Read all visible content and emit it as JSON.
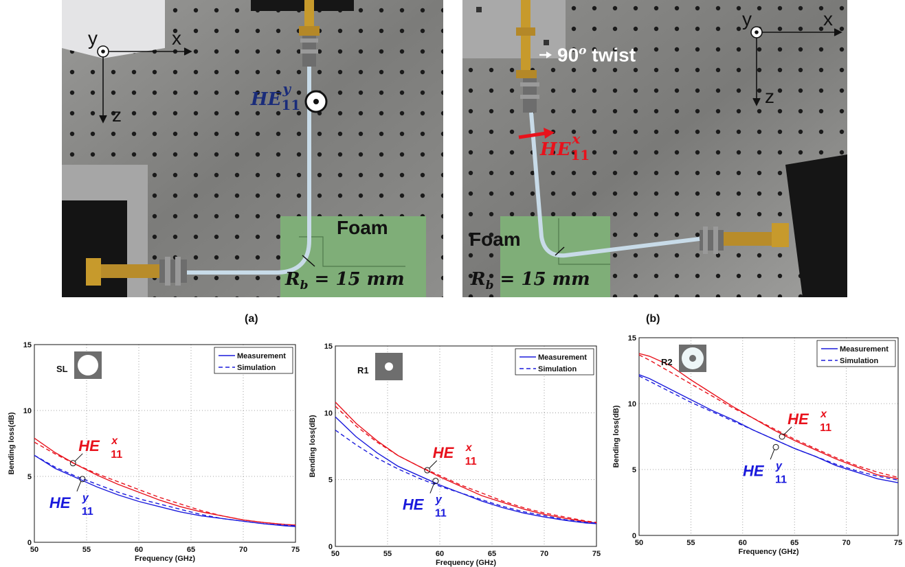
{
  "photos": [
    {
      "axes": {
        "y": "y",
        "x": "x",
        "z": "z"
      },
      "mode_base": "HE",
      "mode_sub": "11",
      "mode_sup": "y",
      "foam": "Foam",
      "radius": "R",
      "radius_sub": "b",
      "radius_value": " = 15 mm",
      "caption": "(a)"
    },
    {
      "axes": {
        "y": "y",
        "x": "x",
        "z": "z"
      },
      "twist": "90",
      "twist_sup": "o",
      "twist_word": " twist",
      "mode_base": "HE",
      "mode_sub": "11",
      "mode_sup": "x",
      "foam": "Foam",
      "radius": "R",
      "radius_sub": "b",
      "radius_value": " = 15 mm",
      "caption": "(b)"
    }
  ],
  "colors": {
    "hex": "#e8121c",
    "hey": "#1a1adc",
    "hey_photo": "#1a2c7a",
    "foam": "#7fae78",
    "plate": "#8c8c8a"
  },
  "chart_data": [
    {
      "type": "line",
      "title": "",
      "inset_label": "SL",
      "xlabel": "Frequency (GHz)",
      "ylabel": "Bending loss(dB)",
      "xlim": [
        50,
        75
      ],
      "ylim": [
        0,
        15
      ],
      "xticks": [
        "50",
        "55",
        "60",
        "65",
        "70",
        "75"
      ],
      "yticks": [
        "0",
        "5",
        "10",
        "15"
      ],
      "grid": true,
      "legend": {
        "position": "top-right",
        "entries": [
          "Measurement",
          "Simulation"
        ]
      },
      "series": [
        {
          "mode": "x",
          "style": "solid",
          "x": [
            50,
            52,
            54,
            56,
            58,
            60,
            62,
            64,
            66,
            68,
            70,
            72,
            74,
            75
          ],
          "y": [
            7.9,
            6.8,
            5.9,
            5.1,
            4.4,
            3.8,
            3.2,
            2.7,
            2.3,
            2.0,
            1.7,
            1.5,
            1.35,
            1.3
          ]
        },
        {
          "mode": "x",
          "style": "dashed",
          "x": [
            50,
            52,
            54,
            56,
            58,
            60,
            62,
            64,
            66,
            68,
            70,
            72,
            74,
            75
          ],
          "y": [
            7.6,
            6.7,
            5.9,
            5.2,
            4.6,
            4.0,
            3.4,
            2.9,
            2.4,
            2.0,
            1.7,
            1.5,
            1.35,
            1.3
          ]
        },
        {
          "mode": "y",
          "style": "solid",
          "x": [
            50,
            52,
            54,
            56,
            58,
            60,
            62,
            64,
            66,
            68,
            70,
            72,
            74,
            75
          ],
          "y": [
            6.6,
            5.6,
            4.9,
            4.2,
            3.6,
            3.1,
            2.7,
            2.3,
            2.0,
            1.8,
            1.6,
            1.4,
            1.25,
            1.2
          ]
        },
        {
          "mode": "y",
          "style": "dashed",
          "x": [
            50,
            52,
            54,
            56,
            58,
            60,
            62,
            64,
            66,
            68,
            70,
            72,
            74,
            75
          ],
          "y": [
            6.6,
            5.7,
            5.0,
            4.4,
            3.8,
            3.3,
            2.9,
            2.5,
            2.1,
            1.8,
            1.6,
            1.4,
            1.3,
            1.25
          ]
        }
      ],
      "annotations": {
        "x_base": "HE",
        "x_sup": "x",
        "y_base": "HE",
        "y_sup": "y",
        "sub": "11",
        "x_point": [
          53.7,
          6.0
        ],
        "y_point": [
          54.6,
          4.8
        ]
      }
    },
    {
      "type": "line",
      "title": "",
      "inset_label": "R1",
      "xlabel": "Frequency (GHz)",
      "ylabel": "Bending loss(dB)",
      "xlim": [
        50,
        75
      ],
      "ylim": [
        0,
        15
      ],
      "xticks": [
        "50",
        "55",
        "60",
        "65",
        "70",
        "75"
      ],
      "yticks": [
        "0",
        "5",
        "10",
        "15"
      ],
      "grid": true,
      "legend": {
        "position": "top-right",
        "entries": [
          "Measurement",
          "Simulation"
        ]
      },
      "series": [
        {
          "mode": "x",
          "style": "solid",
          "x": [
            50,
            52,
            54,
            56,
            58,
            60,
            62,
            64,
            66,
            68,
            70,
            72,
            74,
            75
          ],
          "y": [
            10.8,
            9.2,
            7.9,
            6.8,
            6.0,
            5.2,
            4.5,
            3.8,
            3.3,
            2.8,
            2.4,
            2.1,
            1.85,
            1.75
          ]
        },
        {
          "mode": "x",
          "style": "dashed",
          "x": [
            50,
            52,
            54,
            56,
            58,
            60,
            62,
            64,
            66,
            68,
            70,
            72,
            74,
            75
          ],
          "y": [
            10.5,
            9.0,
            7.8,
            6.8,
            6.0,
            5.3,
            4.6,
            4.0,
            3.4,
            2.9,
            2.5,
            2.2,
            1.9,
            1.8
          ]
        },
        {
          "mode": "y",
          "style": "solid",
          "x": [
            50,
            52,
            54,
            56,
            58,
            60,
            62,
            64,
            66,
            68,
            70,
            72,
            74,
            75
          ],
          "y": [
            9.7,
            8.2,
            7.0,
            6.0,
            5.3,
            4.6,
            4.0,
            3.4,
            2.9,
            2.5,
            2.2,
            1.95,
            1.75,
            1.7
          ]
        },
        {
          "mode": "y",
          "style": "dashed",
          "x": [
            50,
            52,
            54,
            56,
            58,
            60,
            62,
            64,
            66,
            68,
            70,
            72,
            74,
            75
          ],
          "y": [
            8.7,
            7.6,
            6.6,
            5.8,
            5.1,
            4.5,
            4.0,
            3.5,
            3.0,
            2.6,
            2.3,
            2.0,
            1.8,
            1.75
          ]
        }
      ],
      "annotations": {
        "x_base": "HE",
        "x_sup": "x",
        "y_base": "HE",
        "y_sup": "y",
        "sub": "11",
        "x_point": [
          58.8,
          5.7
        ],
        "y_point": [
          59.6,
          4.9
        ]
      }
    },
    {
      "type": "line",
      "title": "",
      "inset_label": "R2",
      "xlabel": "Frequency (GHz)",
      "ylabel": "Bending loss(dB)",
      "xlim": [
        50,
        75
      ],
      "ylim": [
        0,
        15
      ],
      "xticks": [
        "50",
        "55",
        "60",
        "65",
        "70",
        "75"
      ],
      "yticks": [
        "0",
        "5",
        "10",
        "15"
      ],
      "grid": true,
      "legend": {
        "position": "top-right",
        "entries": [
          "Measurement",
          "Simulation"
        ]
      },
      "series": [
        {
          "mode": "x",
          "style": "solid",
          "x": [
            50,
            51,
            53,
            55,
            57,
            59,
            61,
            63,
            65,
            67,
            69,
            71,
            73,
            75
          ],
          "y": [
            13.8,
            13.6,
            12.9,
            11.8,
            10.8,
            9.8,
            8.9,
            8.0,
            7.2,
            6.5,
            5.8,
            5.2,
            4.6,
            4.3
          ]
        },
        {
          "mode": "x",
          "style": "dashed",
          "x": [
            50,
            51,
            53,
            55,
            57,
            59,
            61,
            63,
            65,
            67,
            69,
            71,
            73,
            75
          ],
          "y": [
            13.7,
            13.3,
            12.4,
            11.5,
            10.6,
            9.7,
            8.9,
            8.1,
            7.3,
            6.6,
            5.9,
            5.3,
            4.8,
            4.4
          ]
        },
        {
          "mode": "y",
          "style": "solid",
          "x": [
            50,
            51,
            53,
            55,
            57,
            59,
            61,
            63,
            65,
            67,
            69,
            71,
            73,
            75
          ],
          "y": [
            12.2,
            11.9,
            11.1,
            10.3,
            9.5,
            8.8,
            8.0,
            7.3,
            6.6,
            6.0,
            5.3,
            4.8,
            4.3,
            4.0
          ]
        },
        {
          "mode": "y",
          "style": "dashed",
          "x": [
            50,
            51,
            53,
            55,
            57,
            59,
            61,
            63,
            65,
            67,
            69,
            71,
            73,
            75
          ],
          "y": [
            12.1,
            11.7,
            10.9,
            10.1,
            9.4,
            8.7,
            8.0,
            7.3,
            6.6,
            6.0,
            5.4,
            4.9,
            4.5,
            4.2
          ]
        }
      ],
      "annotations": {
        "x_base": "HE",
        "x_sup": "x",
        "y_base": "HE",
        "y_sup": "y",
        "sub": "11",
        "x_point": [
          63.8,
          7.5
        ],
        "y_point": [
          63.2,
          6.7
        ]
      }
    }
  ]
}
